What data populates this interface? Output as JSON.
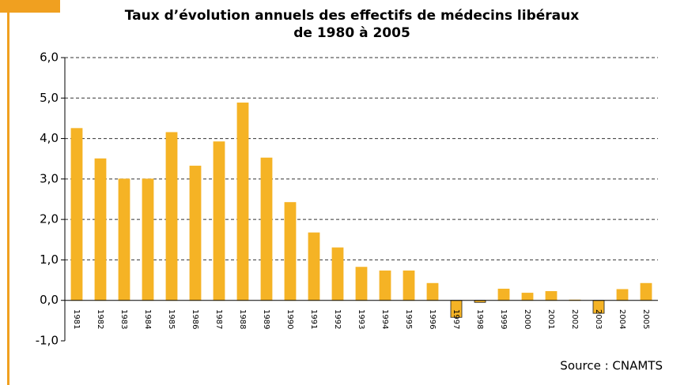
{
  "chart_data": {
    "type": "bar",
    "title": [
      "Taux d’évolution annuels des effectifs de médecins libéraux",
      "de 1980 à 2005"
    ],
    "categories": [
      "1981",
      "1982",
      "1983",
      "1984",
      "1985",
      "1986",
      "1987",
      "1988",
      "1989",
      "1990",
      "1991",
      "1992",
      "1993",
      "1994",
      "1995",
      "1996",
      "1997",
      "1998",
      "1999",
      "2000",
      "2001",
      "2002",
      "2003",
      "2004",
      "2005"
    ],
    "values": [
      4.25,
      3.5,
      3.0,
      3.0,
      4.15,
      3.32,
      3.92,
      4.88,
      3.52,
      2.42,
      1.67,
      1.3,
      0.82,
      0.73,
      0.73,
      0.42,
      -0.42,
      -0.05,
      0.28,
      0.18,
      0.22,
      0.01,
      -0.32,
      0.27,
      0.42
    ],
    "color": "#f5b325",
    "ylim": [
      -1,
      6
    ],
    "yticks": [
      {
        "value": -1,
        "label": "-1,0"
      },
      {
        "value": 0,
        "label": "0,0"
      },
      {
        "value": 1,
        "label": "1,0"
      },
      {
        "value": 2,
        "label": "2,0"
      },
      {
        "value": 3,
        "label": "3,0"
      },
      {
        "value": 4,
        "label": "4,0"
      },
      {
        "value": 5,
        "label": "5,0"
      },
      {
        "value": 6,
        "label": "6,0"
      }
    ],
    "grid": true,
    "source": "Source : CNAMTS"
  }
}
